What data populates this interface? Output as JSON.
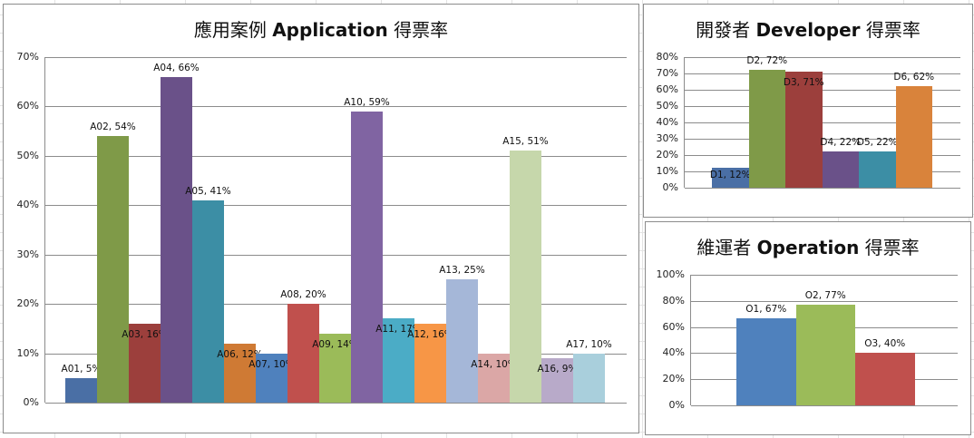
{
  "chart_data": [
    {
      "type": "bar",
      "title": "應用案例 Application 得票率",
      "title_parts": {
        "cjk1": "應用案例 ",
        "latin": "Application",
        "cjk2": " 得票率"
      },
      "xlabel": "",
      "ylabel": "",
      "ylim": [
        0,
        70
      ],
      "yticks": [
        "0%",
        "10%",
        "20%",
        "30%",
        "40%",
        "50%",
        "60%",
        "70%"
      ],
      "grid": true,
      "legend": "none",
      "categories": [
        "A01",
        "A02",
        "A03",
        "A04",
        "A05",
        "A06",
        "A07",
        "A08",
        "A09",
        "A10",
        "A11",
        "A12",
        "A13",
        "A14",
        "A15",
        "A16",
        "A17"
      ],
      "values": [
        5,
        54,
        16,
        66,
        41,
        12,
        10,
        20,
        14,
        59,
        17,
        16,
        25,
        10,
        51,
        9,
        10
      ],
      "labels": [
        "A01, 5%",
        "A02, 54%",
        "A03, 16%",
        "A04, 66%",
        "A05, 41%",
        "A06, 12%",
        "A07, 10%",
        "A08, 20%",
        "A09, 14%",
        "A10, 59%",
        "A11, 17%",
        "A12, 16%",
        "A13, 25%",
        "A14, 10%",
        "A15, 51%",
        "A16, 9%",
        "A17, 10%"
      ],
      "colors": [
        "#4a6fa5",
        "#7f9a48",
        "#9c3f3c",
        "#6a5189",
        "#3c8ea5",
        "#cf7a34",
        "#4f81bd",
        "#c0504d",
        "#9bbb59",
        "#8064a2",
        "#4bacc6",
        "#f79646",
        "#a5b7d8",
        "#dba7a6",
        "#c6d7ab",
        "#b8aac9",
        "#a9cfdc"
      ]
    },
    {
      "type": "bar",
      "title": "開發者 Developer 得票率",
      "title_parts": {
        "cjk1": "開發者 ",
        "latin": "Developer",
        "cjk2": " 得票率"
      },
      "xlabel": "",
      "ylabel": "",
      "ylim": [
        0,
        80
      ],
      "yticks": [
        "0%",
        "10%",
        "20%",
        "30%",
        "40%",
        "50%",
        "60%",
        "70%",
        "80%"
      ],
      "grid": true,
      "legend": "none",
      "categories": [
        "D1",
        "D2",
        "D3",
        "D4",
        "D5",
        "D6"
      ],
      "values": [
        12,
        72,
        71,
        22,
        22,
        62
      ],
      "labels": [
        "D1, 12%",
        "D2, 72%",
        "D3, 71%",
        "D4, 22%",
        "D5, 22%",
        "D6, 62%"
      ],
      "colors": [
        "#4a6fa5",
        "#7f9a48",
        "#9c3f3c",
        "#6a5189",
        "#3c8ea5",
        "#d9833b"
      ]
    },
    {
      "type": "bar",
      "title": "維運者 Operation 得票率",
      "title_parts": {
        "cjk1": "維運者 ",
        "latin": "Operation",
        "cjk2": " 得票率"
      },
      "xlabel": "",
      "ylabel": "",
      "ylim": [
        0,
        100
      ],
      "yticks": [
        "0%",
        "20%",
        "40%",
        "60%",
        "80%",
        "100%"
      ],
      "grid": true,
      "legend": "none",
      "categories": [
        "O1",
        "O2",
        "O3"
      ],
      "values": [
        67,
        77,
        40
      ],
      "labels": [
        "O1, 67%",
        "O2, 77%",
        "O3, 40%"
      ],
      "colors": [
        "#4f81bd",
        "#9bbb59",
        "#c0504d"
      ]
    }
  ]
}
